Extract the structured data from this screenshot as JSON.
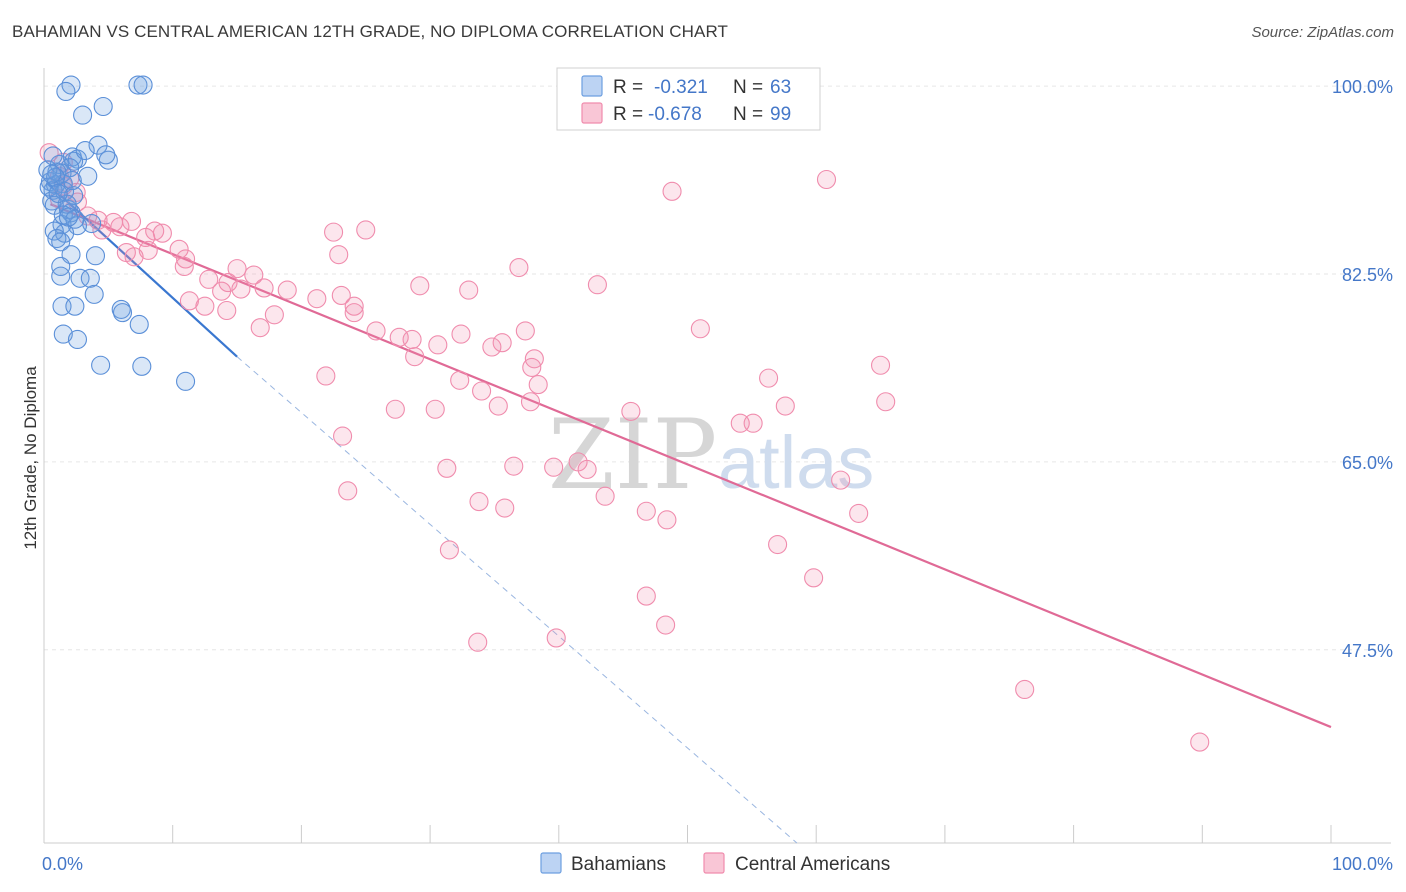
{
  "title": "BAHAMIAN VS CENTRAL AMERICAN 12TH GRADE, NO DIPLOMA CORRELATION CHART",
  "source": "Source: ZipAtlas.com",
  "watermark": {
    "zip": "ZIP",
    "atlas": "atlas"
  },
  "colors": {
    "blue": "#6d9fe0",
    "blue_line": "#3a77d0",
    "pink": "#f08cad",
    "pink_line": "#e06a96",
    "tick": "#4477c8"
  },
  "legend_box": {
    "rows": [
      {
        "r_label": "R = ",
        "r_value": "-0.321",
        "n_label": "N = ",
        "n_value": "63"
      },
      {
        "r_label": "R = ",
        "r_value": "-0.678",
        "n_label": "N = ",
        "n_value": "99"
      }
    ]
  },
  "bottom_legend": [
    "Bahamians",
    "Central Americans"
  ],
  "chart_data": {
    "type": "scatter",
    "title": "BAHAMIAN VS CENTRAL AMERICAN 12TH GRADE, NO DIPLOMA CORRELATION CHART",
    "xlabel": "",
    "ylabel": "12th Grade, No Diploma",
    "xlim": [
      0,
      100
    ],
    "ylim": [
      29.5,
      101.5
    ],
    "x_tick_labels": [
      "0.0%",
      "100.0%"
    ],
    "y_ticks": [
      47.5,
      65.0,
      82.5,
      100.0
    ],
    "y_tick_labels": [
      "47.5%",
      "65.0%",
      "82.5%",
      "100.0%"
    ],
    "grid": true,
    "legend_position": "top-center",
    "series": [
      {
        "name": "Bahamians",
        "color": "#6d9fe0",
        "trend": {
          "x": [
            0.2,
            15.0
          ],
          "y": [
            91.0,
            74.8
          ],
          "extend_dashed_to": [
            58.5,
            29.5
          ]
        },
        "points": [
          [
            2.1,
            100.1
          ],
          [
            7.3,
            100.1
          ],
          [
            7.7,
            100.1
          ],
          [
            1.7,
            99.5
          ],
          [
            4.6,
            98.1
          ],
          [
            3.0,
            97.3
          ],
          [
            2.2,
            93.4
          ],
          [
            2.6,
            93.2
          ],
          [
            5.0,
            93.1
          ],
          [
            2.3,
            93.0
          ],
          [
            1.2,
            92.7
          ],
          [
            2.0,
            92.4
          ],
          [
            1.4,
            91.9
          ],
          [
            1.5,
            90.9
          ],
          [
            0.5,
            91.1
          ],
          [
            0.9,
            90.8
          ],
          [
            0.7,
            90.3
          ],
          [
            1.6,
            90.2
          ],
          [
            2.3,
            89.8
          ],
          [
            0.6,
            89.3
          ],
          [
            0.8,
            88.9
          ],
          [
            1.9,
            88.5
          ],
          [
            2.1,
            88.2
          ],
          [
            3.7,
            87.2
          ],
          [
            2.6,
            87.0
          ],
          [
            1.4,
            87.1
          ],
          [
            1.6,
            86.3
          ],
          [
            0.8,
            86.5
          ],
          [
            1.0,
            85.8
          ],
          [
            1.3,
            85.5
          ],
          [
            2.1,
            84.3
          ],
          [
            4.0,
            84.2
          ],
          [
            1.3,
            83.2
          ],
          [
            1.3,
            82.3
          ],
          [
            2.8,
            82.1
          ],
          [
            3.6,
            82.1
          ],
          [
            3.9,
            80.6
          ],
          [
            1.4,
            79.5
          ],
          [
            2.4,
            79.5
          ],
          [
            6.0,
            79.2
          ],
          [
            6.1,
            78.9
          ],
          [
            7.4,
            77.8
          ],
          [
            1.5,
            76.9
          ],
          [
            2.6,
            76.4
          ],
          [
            4.4,
            74.0
          ],
          [
            7.6,
            73.9
          ],
          [
            11.0,
            72.5
          ],
          [
            4.2,
            94.5
          ],
          [
            4.8,
            93.6
          ],
          [
            1.0,
            92.0
          ],
          [
            0.4,
            90.6
          ],
          [
            3.2,
            94.0
          ],
          [
            2.2,
            91.2
          ],
          [
            1.8,
            89.0
          ],
          [
            0.3,
            92.2
          ],
          [
            0.9,
            91.5
          ],
          [
            1.5,
            88.0
          ],
          [
            0.6,
            91.8
          ],
          [
            1.1,
            90.0
          ],
          [
            2.4,
            87.6
          ],
          [
            3.4,
            91.6
          ],
          [
            0.7,
            93.5
          ],
          [
            1.9,
            87.8
          ]
        ]
      },
      {
        "name": "Central Americans",
        "color": "#f08cad",
        "trend": {
          "x": [
            0.5,
            100.0
          ],
          "y": [
            89.0,
            40.3
          ]
        },
        "points": [
          [
            0.4,
            93.8
          ],
          [
            1.5,
            92.9
          ],
          [
            1.2,
            91.6
          ],
          [
            2.0,
            91.4
          ],
          [
            1.5,
            90.7
          ],
          [
            2.5,
            90.1
          ],
          [
            1.2,
            89.5
          ],
          [
            2.6,
            89.2
          ],
          [
            3.4,
            87.9
          ],
          [
            4.2,
            87.5
          ],
          [
            5.4,
            87.3
          ],
          [
            6.8,
            87.4
          ],
          [
            5.9,
            86.9
          ],
          [
            4.5,
            86.6
          ],
          [
            8.6,
            86.5
          ],
          [
            9.2,
            86.3
          ],
          [
            7.9,
            85.9
          ],
          [
            10.5,
            84.8
          ],
          [
            8.1,
            84.7
          ],
          [
            6.4,
            84.5
          ],
          [
            7.0,
            84.1
          ],
          [
            11.0,
            83.9
          ],
          [
            10.9,
            83.2
          ],
          [
            15.0,
            83.0
          ],
          [
            16.3,
            82.4
          ],
          [
            12.8,
            82.0
          ],
          [
            14.3,
            81.7
          ],
          [
            15.3,
            81.1
          ],
          [
            17.1,
            81.2
          ],
          [
            18.9,
            81.0
          ],
          [
            13.8,
            80.9
          ],
          [
            11.3,
            80.0
          ],
          [
            23.1,
            80.5
          ],
          [
            21.2,
            80.2
          ],
          [
            14.2,
            79.1
          ],
          [
            12.5,
            79.5
          ],
          [
            24.1,
            79.5
          ],
          [
            17.9,
            78.7
          ],
          [
            24.1,
            78.9
          ],
          [
            16.8,
            77.5
          ],
          [
            25.8,
            77.2
          ],
          [
            27.6,
            76.6
          ],
          [
            28.6,
            76.4
          ],
          [
            32.4,
            76.9
          ],
          [
            30.6,
            75.9
          ],
          [
            34.8,
            75.7
          ],
          [
            35.6,
            76.1
          ],
          [
            37.4,
            77.2
          ],
          [
            28.8,
            74.8
          ],
          [
            38.1,
            74.6
          ],
          [
            37.9,
            73.8
          ],
          [
            21.9,
            73.0
          ],
          [
            32.3,
            72.6
          ],
          [
            38.4,
            72.2
          ],
          [
            34.0,
            71.6
          ],
          [
            37.8,
            70.6
          ],
          [
            35.3,
            70.2
          ],
          [
            27.3,
            69.9
          ],
          [
            30.4,
            69.9
          ],
          [
            45.6,
            69.7
          ],
          [
            23.2,
            67.4
          ],
          [
            41.5,
            65.0
          ],
          [
            36.5,
            64.6
          ],
          [
            39.6,
            64.5
          ],
          [
            31.3,
            64.4
          ],
          [
            42.2,
            64.3
          ],
          [
            23.6,
            62.3
          ],
          [
            43.6,
            61.8
          ],
          [
            33.8,
            61.3
          ],
          [
            35.8,
            60.7
          ],
          [
            46.8,
            60.4
          ],
          [
            48.4,
            59.6
          ],
          [
            31.5,
            56.8
          ],
          [
            48.3,
            49.8
          ],
          [
            39.8,
            48.6
          ],
          [
            33.7,
            48.2
          ],
          [
            46.8,
            52.5
          ],
          [
            63.3,
            60.2
          ],
          [
            59.8,
            54.2
          ],
          [
            57.0,
            57.3
          ],
          [
            55.1,
            68.6
          ],
          [
            54.1,
            68.6
          ],
          [
            57.6,
            70.2
          ],
          [
            56.3,
            72.8
          ],
          [
            61.9,
            63.3
          ],
          [
            65.4,
            70.6
          ],
          [
            51.0,
            77.4
          ],
          [
            43.0,
            81.5
          ],
          [
            48.8,
            90.2
          ],
          [
            60.8,
            91.3
          ],
          [
            36.9,
            83.1
          ],
          [
            29.2,
            81.4
          ],
          [
            22.5,
            86.4
          ],
          [
            25.0,
            86.6
          ],
          [
            22.9,
            84.3
          ],
          [
            33.0,
            81.0
          ],
          [
            76.2,
            43.8
          ],
          [
            89.8,
            38.9
          ],
          [
            65.0,
            74.0
          ]
        ]
      }
    ]
  }
}
